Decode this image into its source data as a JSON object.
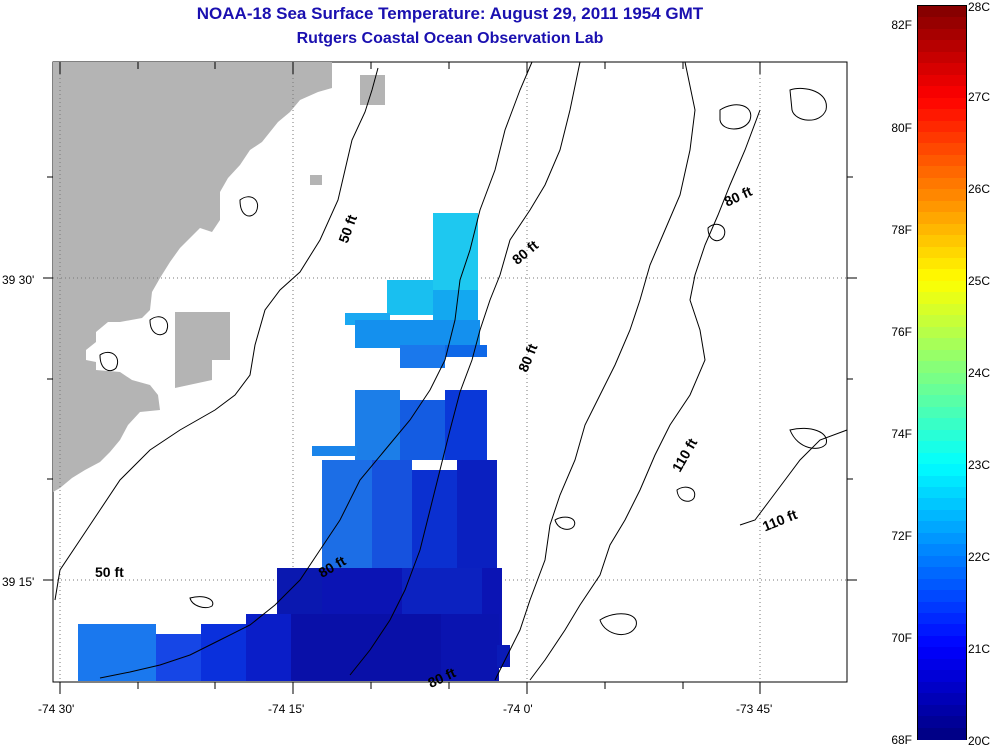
{
  "header": {
    "title": "NOAA-18 Sea Surface Temperature:  August 29, 2011 1954 GMT",
    "subtitle": "Rutgers Coastal Ocean Observation Lab"
  },
  "map": {
    "lat_ticks": [
      {
        "label": "39 30'",
        "value": 39.5
      },
      {
        "label": "39 15'",
        "value": 39.25
      }
    ],
    "lon_ticks": [
      {
        "label": "-74 30'",
        "value": -74.5
      },
      {
        "label": "-74 15'",
        "value": -74.25
      },
      {
        "label": "-74 0'",
        "value": -74.0
      },
      {
        "label": "-73 45'",
        "value": -73.75
      }
    ],
    "contour_labels": [
      "50 ft",
      "50 ft",
      "80 ft",
      "80 ft",
      "80 ft",
      "80 ft",
      "80 ft",
      "110 ft",
      "110 ft"
    ],
    "land_color": "#b4b4b4"
  },
  "colorbar": {
    "fahrenheit_labels": [
      "82F",
      "80F",
      "78F",
      "76F",
      "74F",
      "72F",
      "70F",
      "68F"
    ],
    "celsius_labels": [
      "28C",
      "27C",
      "26C",
      "25C",
      "24C",
      "23C",
      "22C",
      "21C",
      "20C"
    ],
    "range_c": [
      20,
      28
    ]
  }
}
